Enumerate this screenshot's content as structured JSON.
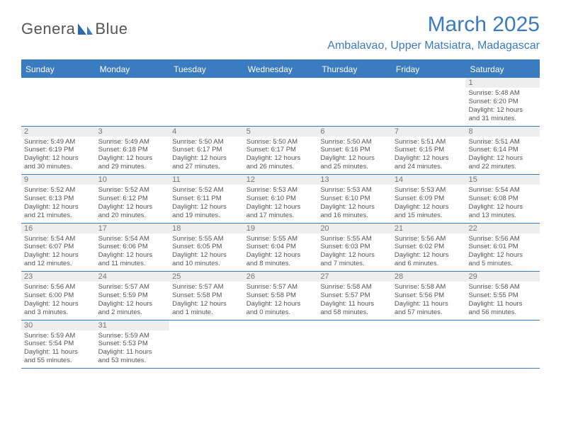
{
  "brand": {
    "name_part1": "Genera",
    "name_part2": "Blue"
  },
  "title": "March 2025",
  "location": "Ambalavao, Upper Matsiatra, Madagascar",
  "colors": {
    "accent": "#3b7bbf",
    "text": "#555555",
    "daynum_bg": "#eeeeee"
  },
  "day_headers": [
    "Sunday",
    "Monday",
    "Tuesday",
    "Wednesday",
    "Thursday",
    "Friday",
    "Saturday"
  ],
  "weeks": [
    [
      null,
      null,
      null,
      null,
      null,
      null,
      {
        "n": "1",
        "sunrise": "Sunrise: 5:48 AM",
        "sunset": "Sunset: 6:20 PM",
        "dl1": "Daylight: 12 hours",
        "dl2": "and 31 minutes."
      }
    ],
    [
      {
        "n": "2",
        "sunrise": "Sunrise: 5:49 AM",
        "sunset": "Sunset: 6:19 PM",
        "dl1": "Daylight: 12 hours",
        "dl2": "and 30 minutes."
      },
      {
        "n": "3",
        "sunrise": "Sunrise: 5:49 AM",
        "sunset": "Sunset: 6:18 PM",
        "dl1": "Daylight: 12 hours",
        "dl2": "and 29 minutes."
      },
      {
        "n": "4",
        "sunrise": "Sunrise: 5:50 AM",
        "sunset": "Sunset: 6:17 PM",
        "dl1": "Daylight: 12 hours",
        "dl2": "and 27 minutes."
      },
      {
        "n": "5",
        "sunrise": "Sunrise: 5:50 AM",
        "sunset": "Sunset: 6:17 PM",
        "dl1": "Daylight: 12 hours",
        "dl2": "and 26 minutes."
      },
      {
        "n": "6",
        "sunrise": "Sunrise: 5:50 AM",
        "sunset": "Sunset: 6:16 PM",
        "dl1": "Daylight: 12 hours",
        "dl2": "and 25 minutes."
      },
      {
        "n": "7",
        "sunrise": "Sunrise: 5:51 AM",
        "sunset": "Sunset: 6:15 PM",
        "dl1": "Daylight: 12 hours",
        "dl2": "and 24 minutes."
      },
      {
        "n": "8",
        "sunrise": "Sunrise: 5:51 AM",
        "sunset": "Sunset: 6:14 PM",
        "dl1": "Daylight: 12 hours",
        "dl2": "and 22 minutes."
      }
    ],
    [
      {
        "n": "9",
        "sunrise": "Sunrise: 5:52 AM",
        "sunset": "Sunset: 6:13 PM",
        "dl1": "Daylight: 12 hours",
        "dl2": "and 21 minutes."
      },
      {
        "n": "10",
        "sunrise": "Sunrise: 5:52 AM",
        "sunset": "Sunset: 6:12 PM",
        "dl1": "Daylight: 12 hours",
        "dl2": "and 20 minutes."
      },
      {
        "n": "11",
        "sunrise": "Sunrise: 5:52 AM",
        "sunset": "Sunset: 6:11 PM",
        "dl1": "Daylight: 12 hours",
        "dl2": "and 19 minutes."
      },
      {
        "n": "12",
        "sunrise": "Sunrise: 5:53 AM",
        "sunset": "Sunset: 6:10 PM",
        "dl1": "Daylight: 12 hours",
        "dl2": "and 17 minutes."
      },
      {
        "n": "13",
        "sunrise": "Sunrise: 5:53 AM",
        "sunset": "Sunset: 6:10 PM",
        "dl1": "Daylight: 12 hours",
        "dl2": "and 16 minutes."
      },
      {
        "n": "14",
        "sunrise": "Sunrise: 5:53 AM",
        "sunset": "Sunset: 6:09 PM",
        "dl1": "Daylight: 12 hours",
        "dl2": "and 15 minutes."
      },
      {
        "n": "15",
        "sunrise": "Sunrise: 5:54 AM",
        "sunset": "Sunset: 6:08 PM",
        "dl1": "Daylight: 12 hours",
        "dl2": "and 13 minutes."
      }
    ],
    [
      {
        "n": "16",
        "sunrise": "Sunrise: 5:54 AM",
        "sunset": "Sunset: 6:07 PM",
        "dl1": "Daylight: 12 hours",
        "dl2": "and 12 minutes."
      },
      {
        "n": "17",
        "sunrise": "Sunrise: 5:54 AM",
        "sunset": "Sunset: 6:06 PM",
        "dl1": "Daylight: 12 hours",
        "dl2": "and 11 minutes."
      },
      {
        "n": "18",
        "sunrise": "Sunrise: 5:55 AM",
        "sunset": "Sunset: 6:05 PM",
        "dl1": "Daylight: 12 hours",
        "dl2": "and 10 minutes."
      },
      {
        "n": "19",
        "sunrise": "Sunrise: 5:55 AM",
        "sunset": "Sunset: 6:04 PM",
        "dl1": "Daylight: 12 hours",
        "dl2": "and 8 minutes."
      },
      {
        "n": "20",
        "sunrise": "Sunrise: 5:55 AM",
        "sunset": "Sunset: 6:03 PM",
        "dl1": "Daylight: 12 hours",
        "dl2": "and 7 minutes."
      },
      {
        "n": "21",
        "sunrise": "Sunrise: 5:56 AM",
        "sunset": "Sunset: 6:02 PM",
        "dl1": "Daylight: 12 hours",
        "dl2": "and 6 minutes."
      },
      {
        "n": "22",
        "sunrise": "Sunrise: 5:56 AM",
        "sunset": "Sunset: 6:01 PM",
        "dl1": "Daylight: 12 hours",
        "dl2": "and 5 minutes."
      }
    ],
    [
      {
        "n": "23",
        "sunrise": "Sunrise: 5:56 AM",
        "sunset": "Sunset: 6:00 PM",
        "dl1": "Daylight: 12 hours",
        "dl2": "and 3 minutes."
      },
      {
        "n": "24",
        "sunrise": "Sunrise: 5:57 AM",
        "sunset": "Sunset: 5:59 PM",
        "dl1": "Daylight: 12 hours",
        "dl2": "and 2 minutes."
      },
      {
        "n": "25",
        "sunrise": "Sunrise: 5:57 AM",
        "sunset": "Sunset: 5:58 PM",
        "dl1": "Daylight: 12 hours",
        "dl2": "and 1 minute."
      },
      {
        "n": "26",
        "sunrise": "Sunrise: 5:57 AM",
        "sunset": "Sunset: 5:58 PM",
        "dl1": "Daylight: 12 hours",
        "dl2": "and 0 minutes."
      },
      {
        "n": "27",
        "sunrise": "Sunrise: 5:58 AM",
        "sunset": "Sunset: 5:57 PM",
        "dl1": "Daylight: 11 hours",
        "dl2": "and 58 minutes."
      },
      {
        "n": "28",
        "sunrise": "Sunrise: 5:58 AM",
        "sunset": "Sunset: 5:56 PM",
        "dl1": "Daylight: 11 hours",
        "dl2": "and 57 minutes."
      },
      {
        "n": "29",
        "sunrise": "Sunrise: 5:58 AM",
        "sunset": "Sunset: 5:55 PM",
        "dl1": "Daylight: 11 hours",
        "dl2": "and 56 minutes."
      }
    ],
    [
      {
        "n": "30",
        "sunrise": "Sunrise: 5:59 AM",
        "sunset": "Sunset: 5:54 PM",
        "dl1": "Daylight: 11 hours",
        "dl2": "and 55 minutes."
      },
      {
        "n": "31",
        "sunrise": "Sunrise: 5:59 AM",
        "sunset": "Sunset: 5:53 PM",
        "dl1": "Daylight: 11 hours",
        "dl2": "and 53 minutes."
      },
      null,
      null,
      null,
      null,
      null
    ]
  ]
}
